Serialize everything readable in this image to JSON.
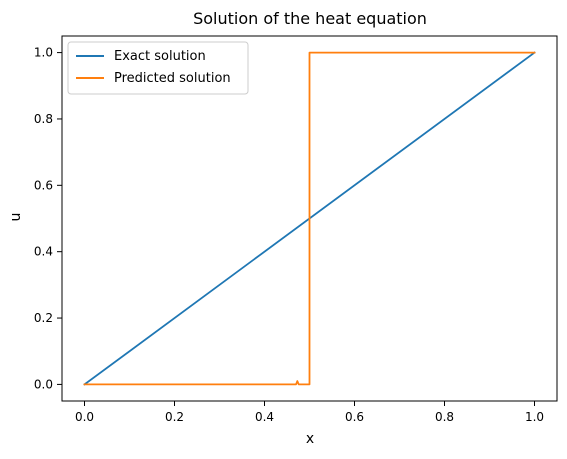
{
  "chart_data": {
    "type": "line",
    "title": "Solution of the heat equation",
    "xlabel": "x",
    "ylabel": "u",
    "xlim": [
      -0.05,
      1.05
    ],
    "ylim": [
      -0.05,
      1.05
    ],
    "xticks": [
      0.0,
      0.2,
      0.4,
      0.6,
      0.8,
      1.0
    ],
    "xtick_labels": [
      "0.0",
      "0.2",
      "0.4",
      "0.6",
      "0.8",
      "1.0"
    ],
    "yticks": [
      0.0,
      0.2,
      0.4,
      0.6,
      0.8,
      1.0
    ],
    "ytick_labels": [
      "0.0",
      "0.2",
      "0.4",
      "0.6",
      "0.8",
      "1.0"
    ],
    "grid": false,
    "legend_position": "top-left",
    "series": [
      {
        "name": "Exact solution",
        "color": "#1f77b4",
        "x": [
          0.0,
          1.0
        ],
        "y": [
          0.0,
          1.0
        ]
      },
      {
        "name": "Predicted solution",
        "color": "#ff7f0e",
        "x": [
          0.0,
          0.47,
          0.473,
          0.476,
          0.499,
          0.5,
          0.5,
          1.0
        ],
        "y": [
          0.0,
          0.0,
          0.01,
          0.0,
          0.0,
          0.0,
          1.0,
          1.0
        ]
      }
    ]
  }
}
